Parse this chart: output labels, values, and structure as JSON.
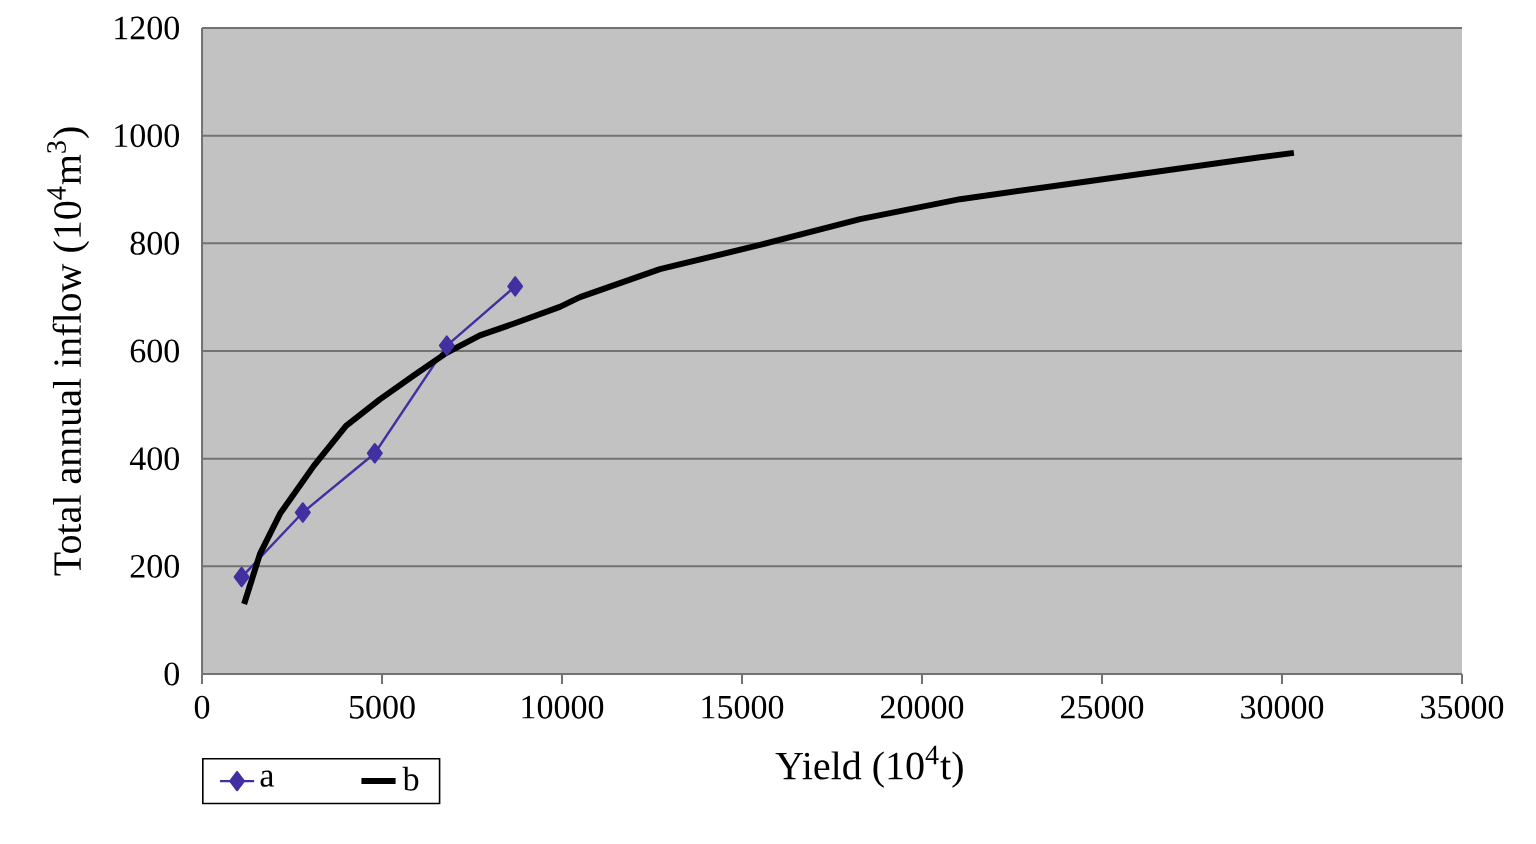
{
  "chart_data": {
    "type": "line",
    "xlabel": "Yield (10$^{4}$t)",
    "ylabel": "Total annual inflow (10$^{4}$m$^{3}$)",
    "xlim": [
      0,
      35000
    ],
    "xticks": [
      0,
      5000,
      10000,
      15000,
      20000,
      25000,
      30000,
      35000
    ],
    "ylim": [
      0,
      1200
    ],
    "yticks": [
      0,
      200,
      400,
      600,
      800,
      1000,
      1200
    ],
    "grid": "y",
    "legend": "bottom left",
    "series": [
      {
        "name": "a",
        "color": "#4030a0",
        "marker": "diamond",
        "x": [
          1100,
          2800,
          4800,
          6800,
          8700
        ],
        "values": [
          180,
          300,
          410,
          610,
          720
        ]
      },
      {
        "name": "b",
        "color": "#000000",
        "marker": "none",
        "x": [
          1170,
          1610,
          2170,
          3110,
          4000,
          4940,
          5890,
          6780,
          7720,
          8670,
          9940,
          10500,
          12720,
          15500,
          18280,
          21060,
          23830,
          26610,
          29390,
          30330
        ],
        "values": [
          130,
          223,
          298,
          387,
          461,
          510,
          555,
          596,
          629,
          651,
          682,
          700,
          752,
          797,
          845,
          882,
          908,
          934,
          960,
          968
        ]
      }
    ]
  }
}
